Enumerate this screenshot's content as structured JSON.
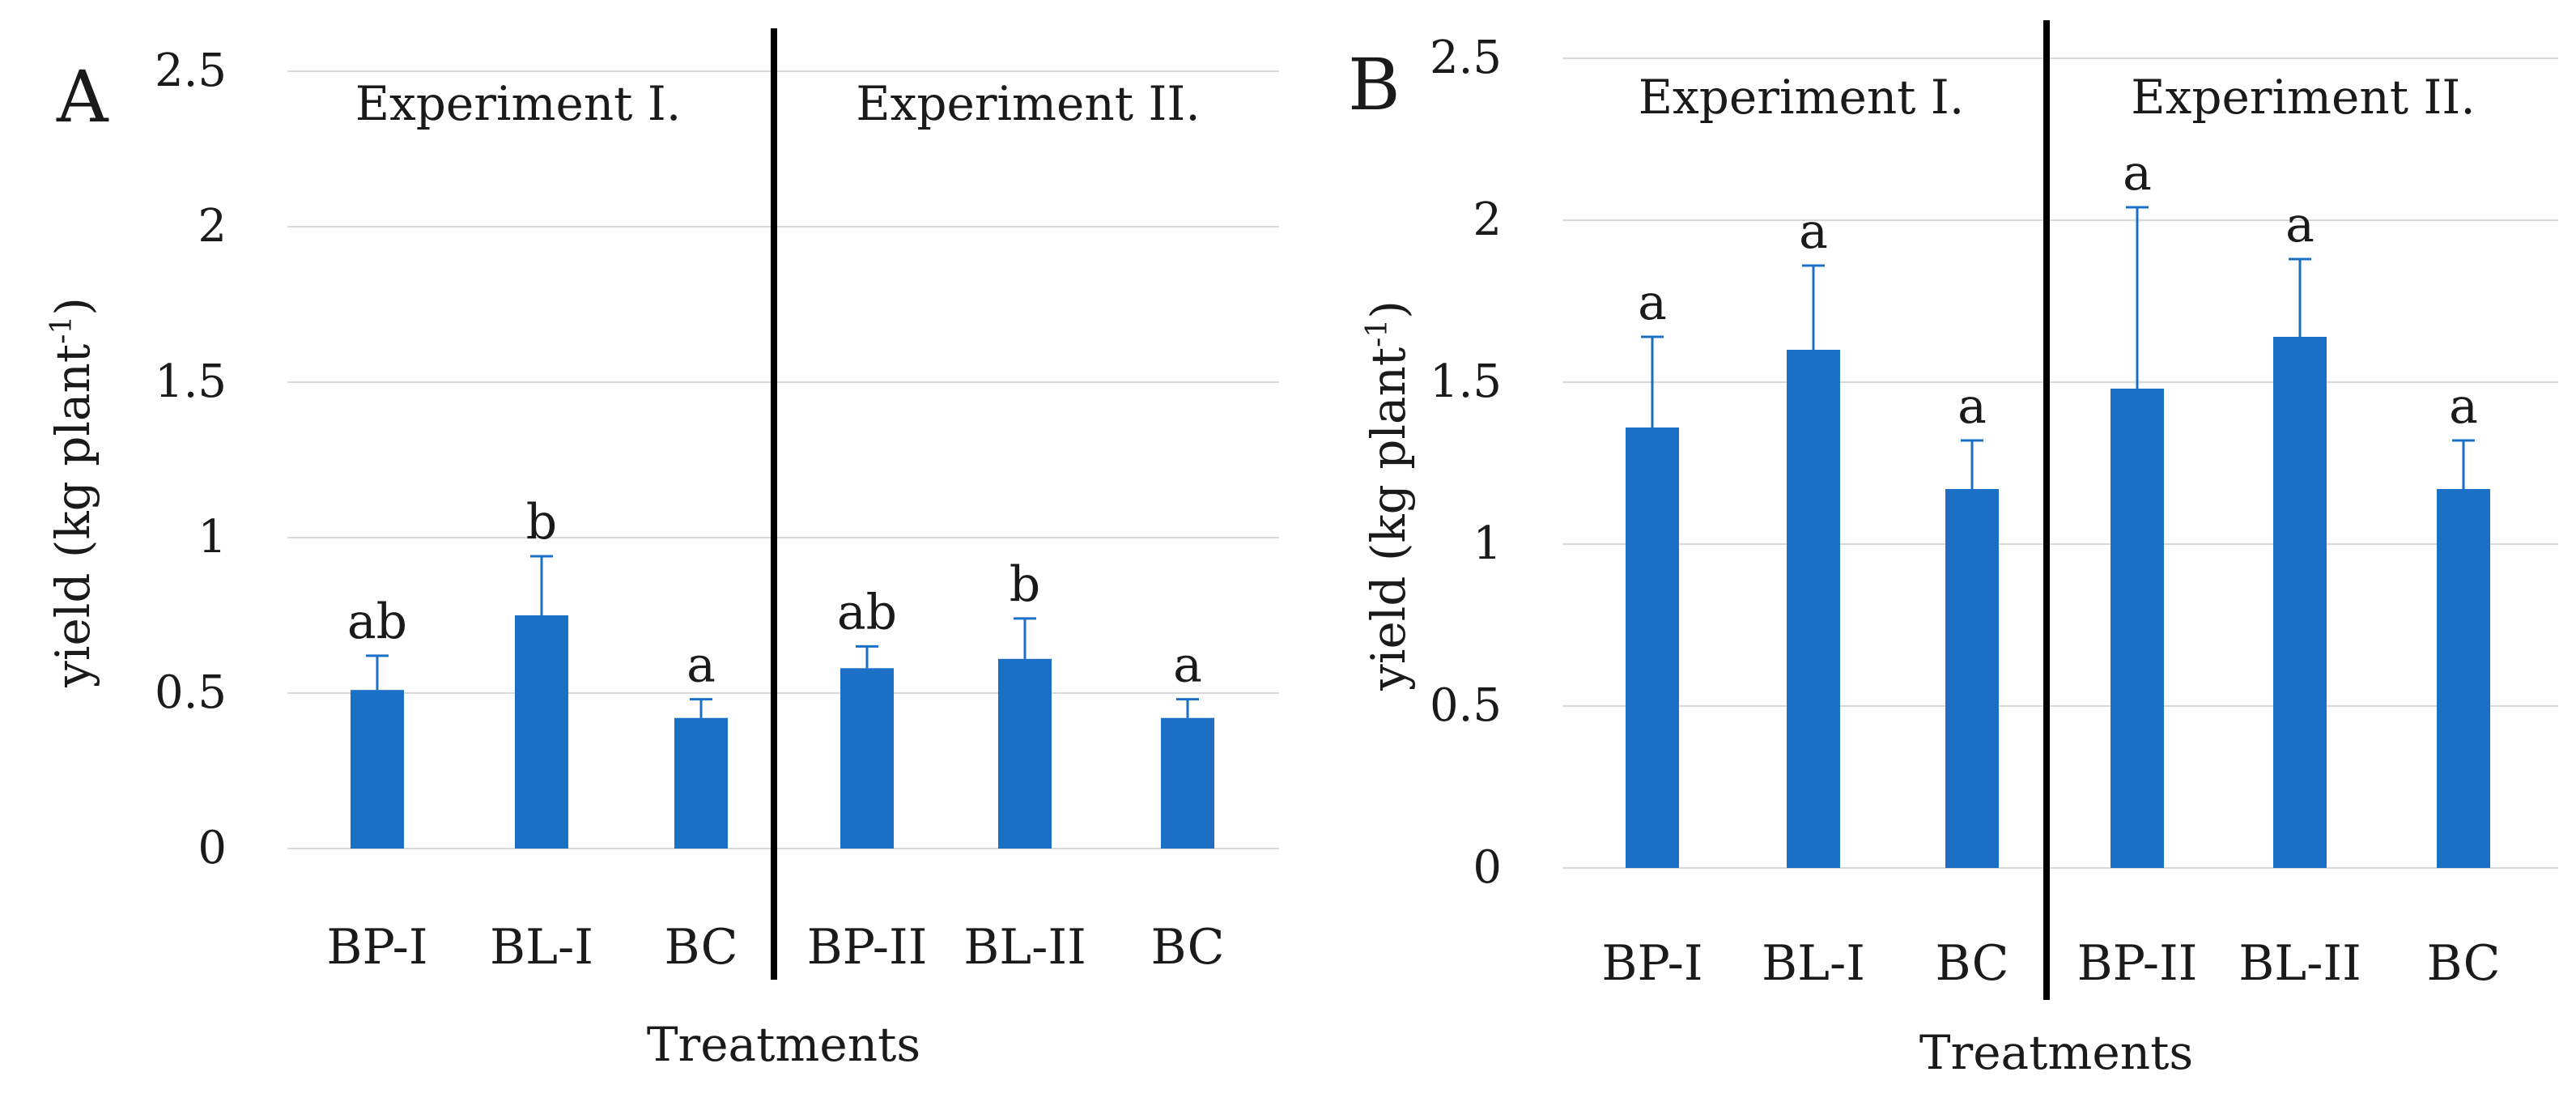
{
  "figure": {
    "background": "#ffffff",
    "bar_color": "#1b70c6"
  },
  "chart_data": [
    {
      "type": "bar",
      "panel_label": "A",
      "ylabel": "yield (kg plant",
      "ylabel_superscript": "-1",
      "ylabel_close": ")",
      "xlabel": "Treatments",
      "ylim": [
        0,
        2.5
      ],
      "yticks": [
        "0",
        "0.5",
        "1",
        "1.5",
        "2",
        "2.5"
      ],
      "ytick_values": [
        0,
        0.5,
        1,
        1.5,
        2,
        2.5
      ],
      "grid": true,
      "groups": [
        "Experiment I.",
        "Experiment II."
      ],
      "categories": [
        "BP-I",
        "BL-I",
        "BC",
        "BP-II",
        "BL-II",
        "BC"
      ],
      "values": [
        0.51,
        0.75,
        0.42,
        0.58,
        0.61,
        0.42
      ],
      "errors": [
        0.11,
        0.19,
        0.06,
        0.07,
        0.13,
        0.06
      ],
      "significance": [
        "ab",
        "b",
        "a",
        "ab",
        "b",
        "a"
      ]
    },
    {
      "type": "bar",
      "panel_label": "B",
      "ylabel": "yield (kg plant",
      "ylabel_superscript": "-1",
      "ylabel_close": ")",
      "xlabel": "Treatments",
      "ylim": [
        0,
        2.5
      ],
      "yticks": [
        "0",
        "0.5",
        "1",
        "1.5",
        "2",
        "2.5"
      ],
      "ytick_values": [
        0,
        0.5,
        1,
        1.5,
        2,
        2.5
      ],
      "grid": true,
      "groups": [
        "Experiment I.",
        "Experiment II."
      ],
      "categories": [
        "BP-I",
        "BL-I",
        "BC",
        "BP-II",
        "BL-II",
        "BC"
      ],
      "values": [
        1.36,
        1.6,
        1.17,
        1.48,
        1.64,
        1.17
      ],
      "errors": [
        0.28,
        0.26,
        0.15,
        0.56,
        0.24,
        0.15
      ],
      "significance": [
        "a",
        "a",
        "a",
        "a",
        "a",
        "a"
      ]
    }
  ]
}
